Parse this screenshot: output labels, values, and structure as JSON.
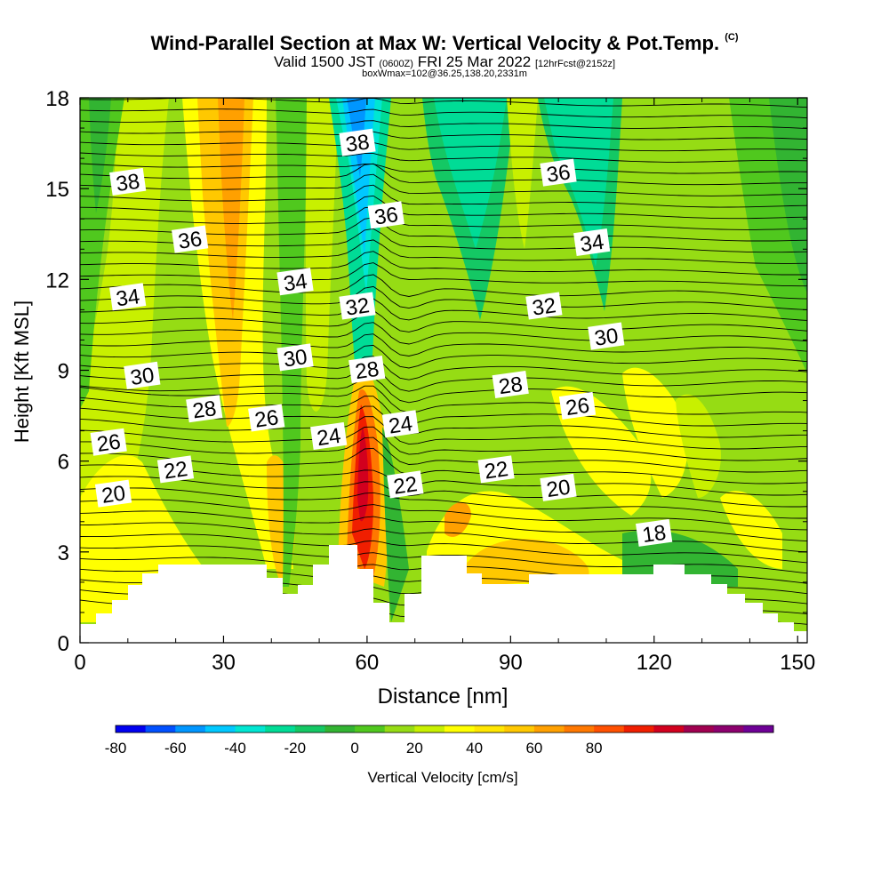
{
  "title": {
    "main": "Wind-Parallel Section at Max W: Vertical Velocity & Pot.Temp.",
    "main_tag": "(C)",
    "valid_prefix": "Valid 1500 JST",
    "valid_utc": "(0600Z)",
    "valid_date": "FRI 25 Mar 2022",
    "forecast": "[12hrFcst@2152z]",
    "box": "boxWmax=102@36.25,138.20,2331m"
  },
  "colorbar": {
    "label": "Vertical Velocity [cm/s]",
    "ticks": [
      "-80",
      "-60",
      "-40",
      "-20",
      "0",
      "20",
      "40",
      "60",
      "80"
    ],
    "bins": [
      "#0000f0",
      "#0050ff",
      "#0096ff",
      "#00c8ff",
      "#00e6d2",
      "#00dc96",
      "#14c864",
      "#32b432",
      "#50c81e",
      "#96dc14",
      "#c8f000",
      "#ffff00",
      "#ffe600",
      "#ffc800",
      "#ffa000",
      "#ff7800",
      "#ff5000",
      "#f01e00",
      "#d2001e",
      "#a00050",
      "#8c006e",
      "#6e0096"
    ]
  },
  "chart_data": {
    "type": "contour",
    "xlabel": "Distance [nm]",
    "ylabel": "Height [Kft MSL]",
    "xlim": [
      0,
      152
    ],
    "ylim": [
      0,
      18
    ],
    "xticks": [
      "0",
      "30",
      "60",
      "90",
      "120",
      "150"
    ],
    "yticks": [
      "0",
      "3",
      "6",
      "9",
      "12",
      "15",
      "18"
    ],
    "isentrope_labels": [
      {
        "text": "38",
        "x": 10,
        "y": 15.2
      },
      {
        "text": "36",
        "x": 23,
        "y": 13.3
      },
      {
        "text": "34",
        "x": 10,
        "y": 11.4
      },
      {
        "text": "30",
        "x": 13,
        "y": 8.8
      },
      {
        "text": "26",
        "x": 6,
        "y": 6.6
      },
      {
        "text": "20",
        "x": 7,
        "y": 4.9
      },
      {
        "text": "22",
        "x": 20,
        "y": 5.7
      },
      {
        "text": "28",
        "x": 26,
        "y": 7.7
      },
      {
        "text": "26",
        "x": 39,
        "y": 7.4
      },
      {
        "text": "24",
        "x": 52,
        "y": 6.8
      },
      {
        "text": "34",
        "x": 45,
        "y": 11.9
      },
      {
        "text": "30",
        "x": 45,
        "y": 9.4
      },
      {
        "text": "38",
        "x": 58,
        "y": 16.5
      },
      {
        "text": "36",
        "x": 64,
        "y": 14.1
      },
      {
        "text": "32",
        "x": 58,
        "y": 11.1
      },
      {
        "text": "28",
        "x": 60,
        "y": 9.0
      },
      {
        "text": "24",
        "x": 67,
        "y": 7.2
      },
      {
        "text": "22",
        "x": 68,
        "y": 5.2
      },
      {
        "text": "22",
        "x": 87,
        "y": 5.7
      },
      {
        "text": "28",
        "x": 90,
        "y": 8.5
      },
      {
        "text": "32",
        "x": 97,
        "y": 11.1
      },
      {
        "text": "36",
        "x": 100,
        "y": 15.5
      },
      {
        "text": "34",
        "x": 107,
        "y": 13.2
      },
      {
        "text": "30",
        "x": 110,
        "y": 10.1
      },
      {
        "text": "26",
        "x": 104,
        "y": 7.8
      },
      {
        "text": "20",
        "x": 100,
        "y": 5.1
      },
      {
        "text": "18",
        "x": 120,
        "y": 3.6
      }
    ]
  }
}
